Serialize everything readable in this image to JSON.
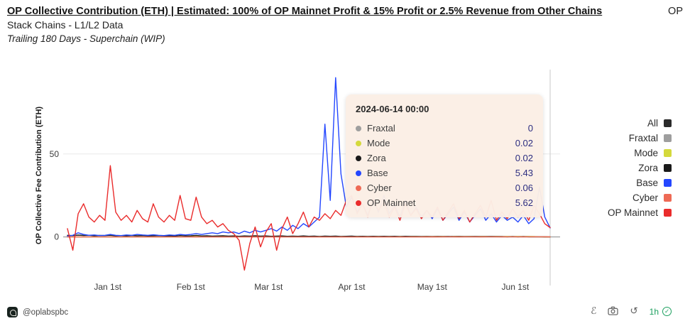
{
  "header": {
    "title_link": "OP Collective Contribution (ETH) | Estimated: 100% of OP Mainnet Profit & 15% Profit or 2.5% Revenue from Other Chains",
    "title_tail": "OP",
    "title_line2": "Stack Chains - L1/L2 Data",
    "subtitle": "Trailing 180 Days - Superchain (WIP)"
  },
  "chart_data": {
    "type": "line",
    "title": "OP Collective Contribution (ETH) | Estimated: 100% of OP Mainnet Profit & 15% Profit or 2.5% Revenue from Other Chains OP Stack Chains - L1/L2 Data",
    "subtitle": "Trailing 180 Days - Superchain (WIP)",
    "ylabel": "OP Collective Fee Contribution (ETH)",
    "xlabel": "",
    "ylim": [
      -25,
      100
    ],
    "x_range_days": 180,
    "crosshair_day": 180,
    "grid": "horizontal only",
    "legend_position": "right",
    "yticks": [
      {
        "label": "50",
        "value": 50
      },
      {
        "label": "0",
        "value": 0
      }
    ],
    "xticks": [
      {
        "label": "Jan 1st",
        "day": 15
      },
      {
        "label": "Feb 1st",
        "day": 46
      },
      {
        "label": "Mar 1st",
        "day": 75
      },
      {
        "label": "Apr 1st",
        "day": 106
      },
      {
        "label": "May 1st",
        "day": 136
      },
      {
        "label": "Jun 1st",
        "day": 167
      }
    ],
    "series": [
      {
        "name": "Fraxtal",
        "color": "#9e9e9e",
        "values": [
          0,
          0
        ]
      },
      {
        "name": "Mode",
        "color": "#d4d93c",
        "values": [
          0,
          0,
          0,
          0,
          0,
          0,
          0,
          0,
          0,
          0,
          0,
          0,
          0,
          0,
          0,
          0,
          0,
          0,
          0,
          0,
          0,
          0,
          0.1,
          0.2,
          0.15,
          0.25,
          0.2,
          0.3,
          0.2,
          0.25,
          0.3,
          0.2,
          0.25,
          0.3,
          0.2,
          0.3,
          0.25,
          0.2,
          0.3,
          0.25,
          0.3,
          0.2,
          0.3,
          0.2,
          0.25,
          0.3,
          0.2,
          0.25,
          0.2,
          0.3,
          0.25,
          0.2,
          0.3,
          0.2,
          0.25,
          0.3,
          0.2,
          0.3,
          0.25,
          0.2,
          0.3,
          0.2,
          0.25,
          0.2,
          0.3,
          0.25,
          0.2,
          0.3,
          0.2,
          0.25,
          0.3,
          0.2,
          0.25,
          0.3,
          0.2,
          0.25,
          0.2,
          0.3,
          0.25,
          0.2,
          0.3,
          0.2,
          0.25,
          0.2,
          0.3,
          0.2,
          0.25,
          0.2,
          0.1,
          0.05,
          0.02
        ]
      },
      {
        "name": "Zora",
        "color": "#1a1a1a",
        "values": [
          1,
          0.8,
          1.1,
          0.9,
          1,
          0.7,
          0.9,
          0.8,
          1,
          0.7,
          0.8,
          0.6,
          0.9,
          0.7,
          0.8,
          0.6,
          0.7,
          0.8,
          0.6,
          0.7,
          0.5,
          0.8,
          0.6,
          0.7,
          0.9,
          0.6,
          0.7,
          0.5,
          0.6,
          0.7,
          0.5,
          0.6,
          0.4,
          0.6,
          0.5,
          0.7,
          0.5,
          0.6,
          0.4,
          0.5,
          0.6,
          0.4,
          0.5,
          0.4,
          0.6,
          0.4,
          0.5,
          0.3,
          0.5,
          0.4,
          0.5,
          0.3,
          0.4,
          0.5,
          0.3,
          0.4,
          0.3,
          0.4,
          0.3,
          0.4,
          0.3,
          0.4,
          0.2,
          0.4,
          0.3,
          0.3,
          0.2,
          0.3,
          0.2,
          0.3,
          0.2,
          0.3,
          0.2,
          0.3,
          0.2,
          0.2,
          0.3,
          0.2,
          0.2,
          0.3,
          0.2,
          0.2,
          0.1,
          0.2,
          0.1,
          0.2,
          0.1,
          0.1,
          0.1,
          0.05,
          0.02
        ]
      },
      {
        "name": "Base",
        "color": "#2447ff",
        "values": [
          0.5,
          1,
          2.5,
          1.5,
          1,
          1.2,
          0.8,
          1,
          1.5,
          1,
          0.8,
          1.2,
          1,
          1.5,
          1.2,
          1,
          1.3,
          1,
          0.8,
          1.2,
          1,
          1.5,
          1.2,
          1.5,
          2,
          1.5,
          2,
          2.5,
          2,
          3,
          2.5,
          3,
          2,
          3.5,
          2.5,
          4,
          3,
          4,
          5,
          3.5,
          6,
          4,
          7,
          5,
          8,
          6,
          9,
          12,
          68,
          22,
          96,
          38,
          18,
          24,
          15,
          20,
          13,
          22,
          15,
          25,
          14,
          19,
          12,
          22,
          13,
          18,
          12,
          16,
          11,
          17,
          10,
          14,
          18,
          10,
          15,
          9,
          13,
          17,
          10,
          14,
          9,
          13,
          10,
          12,
          9,
          13,
          8,
          11,
          30,
          12,
          5.43
        ]
      },
      {
        "name": "Cyber",
        "color": "#ee6a55",
        "values": [
          0,
          0,
          0,
          0,
          0,
          0,
          0,
          0,
          0,
          0,
          0,
          0,
          0,
          0,
          0,
          0,
          0,
          0,
          0,
          0,
          0,
          0,
          0,
          0,
          0,
          0,
          0,
          0,
          0,
          0,
          0,
          0,
          0,
          0,
          0,
          0,
          0,
          0,
          0,
          0,
          0,
          0,
          0,
          0,
          0,
          0,
          0,
          0,
          0,
          0,
          0,
          0,
          0,
          0,
          0,
          0,
          0,
          0,
          0,
          0,
          0,
          0,
          0,
          0,
          0,
          0,
          0,
          0.05,
          0.08,
          0.06,
          0.09,
          0.07,
          0.08,
          0.06,
          0.09,
          0.07,
          0.08,
          0.06,
          0.08,
          0.07,
          0.09,
          0.06,
          0.08,
          0.07,
          0.08,
          0.06,
          0.09,
          0.07,
          0.08,
          0.07,
          0.06
        ]
      },
      {
        "name": "OP Mainnet",
        "color": "#ea2c2c",
        "values": [
          5,
          -8,
          14,
          20,
          12,
          9,
          13,
          10,
          43,
          15,
          10,
          13,
          9,
          16,
          11,
          9,
          20,
          12,
          9,
          13,
          10,
          25,
          11,
          10,
          24,
          12,
          8,
          10,
          6,
          8,
          4,
          2,
          -2,
          -20,
          -4,
          6,
          -6,
          3,
          8,
          -8,
          5,
          12,
          2,
          8,
          15,
          6,
          12,
          10,
          14,
          11,
          16,
          13,
          22,
          25,
          14,
          20,
          12,
          23,
          16,
          21,
          12,
          18,
          10,
          20,
          13,
          17,
          11,
          16,
          12,
          18,
          10,
          15,
          20,
          11,
          16,
          9,
          14,
          19,
          12,
          22,
          10,
          15,
          11,
          17,
          12,
          16,
          10,
          19,
          14,
          8,
          5.62
        ]
      }
    ]
  },
  "tooltip": {
    "title": "2024-06-14 00:00",
    "rows": [
      {
        "label": "Fraxtal",
        "value": "0",
        "color": "#9e9e9e"
      },
      {
        "label": "Mode",
        "value": "0.02",
        "color": "#d4d93c"
      },
      {
        "label": "Zora",
        "value": "0.02",
        "color": "#1a1a1a"
      },
      {
        "label": "Base",
        "value": "5.43",
        "color": "#2447ff"
      },
      {
        "label": "Cyber",
        "value": "0.06",
        "color": "#ee6a55"
      },
      {
        "label": "OP Mainnet",
        "value": "5.62",
        "color": "#ea2c2c"
      }
    ]
  },
  "legend": {
    "items": [
      {
        "label": "All",
        "color": "#2b2b2b"
      },
      {
        "label": "Fraxtal",
        "color": "#9e9e9e"
      },
      {
        "label": "Mode",
        "color": "#d4d93c"
      },
      {
        "label": "Zora",
        "color": "#1a1a1a"
      },
      {
        "label": "Base",
        "color": "#2447ff"
      },
      {
        "label": "Cyber",
        "color": "#ee6a55"
      },
      {
        "label": "OP Mainnet",
        "color": "#ea2c2c"
      }
    ]
  },
  "footer": {
    "handle": "@oplabspbc",
    "freshness": "1h",
    "icons": {
      "edit": "ℰ",
      "refresh": "↺",
      "check": "✓"
    }
  }
}
